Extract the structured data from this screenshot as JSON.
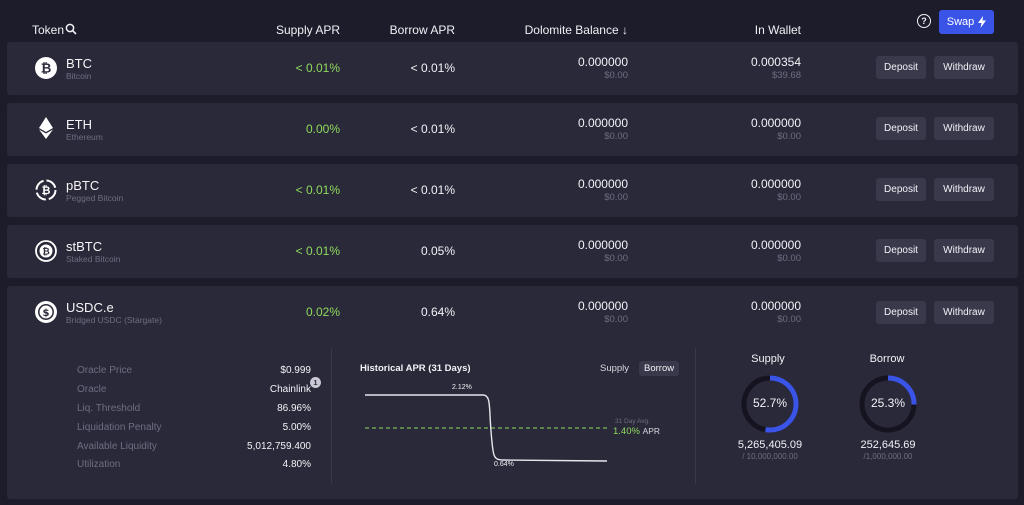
{
  "header": {
    "token": "Token",
    "supply_apr": "Supply APR",
    "borrow_apr": "Borrow APR",
    "dolomite_balance": "Dolomite Balance ↓",
    "in_wallet": "In Wallet",
    "swap": "Swap"
  },
  "rows": [
    {
      "symbol": "BTC",
      "name": "Bitcoin",
      "supply_apr": "< 0.01%",
      "borrow_apr": "< 0.01%",
      "balance": "0.000000",
      "balance_usd": "$0.00",
      "wallet": "0.000354",
      "wallet_usd": "$39.68",
      "deposit": "Deposit",
      "withdraw": "Withdraw",
      "icon": "bitcoin-icon"
    },
    {
      "symbol": "ETH",
      "name": "Ethereum",
      "supply_apr": "0.00%",
      "borrow_apr": "< 0.01%",
      "balance": "0.000000",
      "balance_usd": "$0.00",
      "wallet": "0.000000",
      "wallet_usd": "$0.00",
      "deposit": "Deposit",
      "withdraw": "Withdraw",
      "icon": "ethereum-icon"
    },
    {
      "symbol": "pBTC",
      "name": "Pegged Bitcoin",
      "supply_apr": "< 0.01%",
      "borrow_apr": "< 0.01%",
      "balance": "0.000000",
      "balance_usd": "$0.00",
      "wallet": "0.000000",
      "wallet_usd": "$0.00",
      "deposit": "Deposit",
      "withdraw": "Withdraw",
      "icon": "pegged-bitcoin-icon"
    },
    {
      "symbol": "stBTC",
      "name": "Staked Bitcoin",
      "supply_apr": "< 0.01%",
      "borrow_apr": "0.05%",
      "balance": "0.000000",
      "balance_usd": "$0.00",
      "wallet": "0.000000",
      "wallet_usd": "$0.00",
      "deposit": "Deposit",
      "withdraw": "Withdraw",
      "icon": "staked-bitcoin-icon"
    },
    {
      "symbol": "USDC.e",
      "name": "Bridged USDC (Stargate)",
      "supply_apr": "0.02%",
      "borrow_apr": "0.64%",
      "balance": "0.000000",
      "balance_usd": "$0.00",
      "wallet": "0.000000",
      "wallet_usd": "$0.00",
      "deposit": "Deposit",
      "withdraw": "Withdraw",
      "icon": "usdc-icon"
    }
  ],
  "details": {
    "items": [
      {
        "label": "Oracle Price",
        "value": "$0.999"
      },
      {
        "label": "Oracle",
        "value": "Chainlink"
      },
      {
        "label": "Liq. Threshold",
        "value": "86.96%"
      },
      {
        "label": "Liquidation Penalty",
        "value": "5.00%"
      },
      {
        "label": "Available Liquidity",
        "value": "5,012,759.400"
      },
      {
        "label": "Utilization",
        "value": "4.80%"
      }
    ],
    "oracle_badge": "1",
    "chart": {
      "title": "Historical APR (31 Days)",
      "supply_toggle": "Supply",
      "borrow_toggle": "Borrow",
      "high_label": "2.12%",
      "low_label": "0.64%",
      "avg_caption": "31 Day Avg.",
      "avg_value": "1.40%",
      "avg_unit": "APR"
    },
    "supply": {
      "title": "Supply",
      "percent": "52.7%",
      "fraction": 0.527,
      "amount": "5,265,405.09",
      "cap": "/ 10,000,000.00"
    },
    "borrow": {
      "title": "Borrow",
      "percent": "25.3%",
      "fraction": 0.253,
      "amount": "252,645.69",
      "cap": "/1,000,000.00"
    }
  },
  "colors": {
    "accent": "#3b54e8",
    "green": "#8fda5d",
    "gauge": "#3b54e8"
  }
}
